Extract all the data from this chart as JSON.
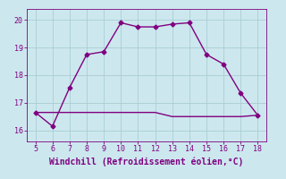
{
  "xlabel": "Windchill (Refroidissement éolien,°C)",
  "xlim": [
    4.5,
    18.5
  ],
  "ylim": [
    15.6,
    20.4
  ],
  "xticks": [
    5,
    6,
    7,
    8,
    9,
    10,
    11,
    12,
    13,
    14,
    15,
    16,
    17,
    18
  ],
  "yticks": [
    16,
    17,
    18,
    19,
    20
  ],
  "background_color": "#cce8ee",
  "line_color": "#800080",
  "grid_color": "#aaccd4",
  "curve_x": [
    5,
    6,
    7,
    8,
    9,
    10,
    11,
    12,
    13,
    14,
    15,
    16,
    17,
    18
  ],
  "curve_y": [
    16.65,
    16.15,
    17.55,
    18.75,
    18.85,
    19.9,
    19.75,
    19.75,
    19.85,
    19.9,
    18.75,
    18.4,
    17.35,
    16.55
  ],
  "flat_x": [
    5,
    6,
    7,
    8,
    9,
    10,
    11,
    12,
    13,
    14,
    15,
    16,
    17,
    18
  ],
  "flat_y": [
    16.65,
    16.65,
    16.65,
    16.65,
    16.65,
    16.65,
    16.65,
    16.65,
    16.5,
    16.5,
    16.5,
    16.5,
    16.5,
    16.55
  ],
  "marker": "D",
  "markersize": 2.5,
  "linewidth": 1.0,
  "tick_fontsize": 6,
  "xlabel_fontsize": 7
}
